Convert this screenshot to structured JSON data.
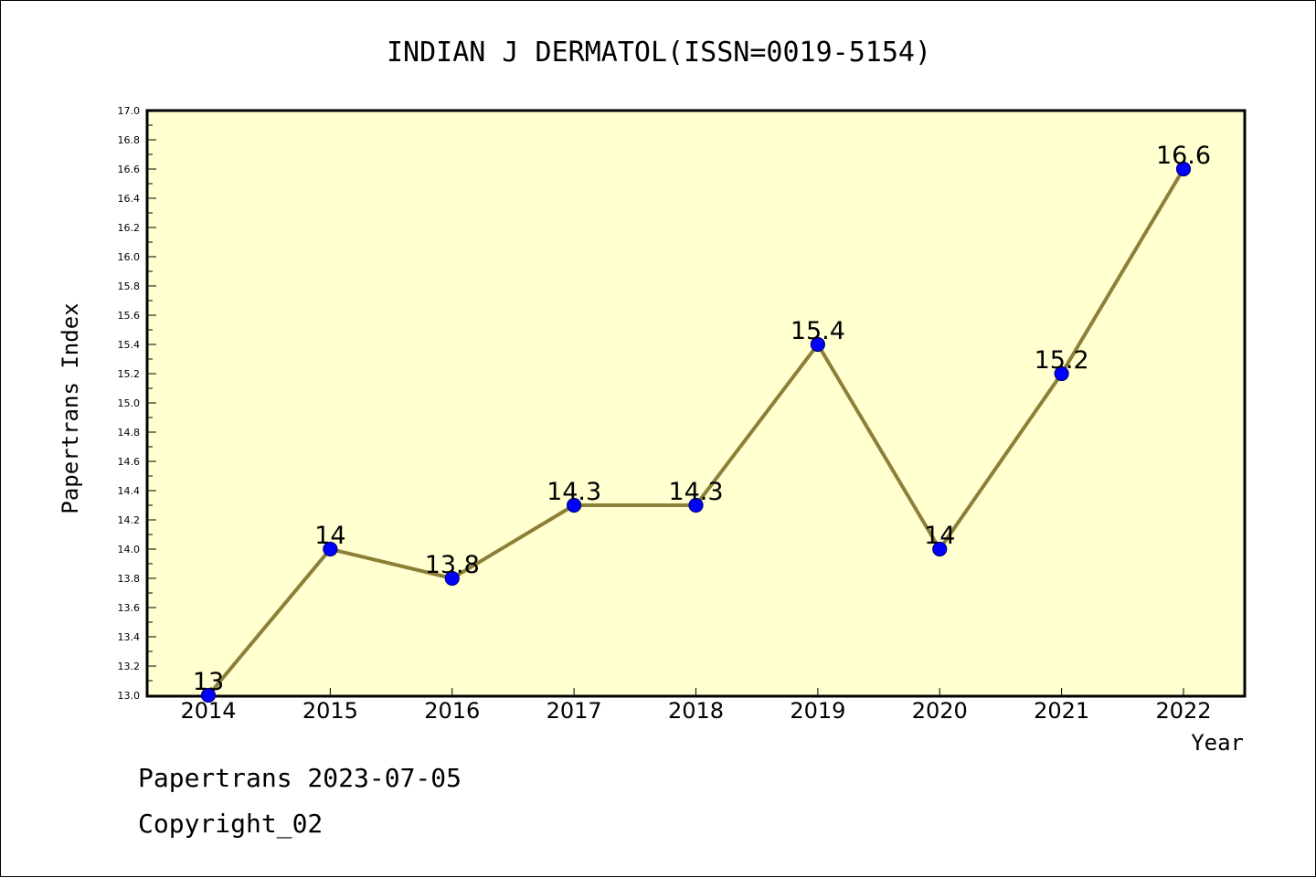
{
  "chart_data": {
    "type": "line",
    "title": "INDIAN J DERMATOL(ISSN=0019-5154)",
    "xlabel": "Year",
    "ylabel": "Papertrans Index",
    "categories": [
      "2014",
      "2015",
      "2016",
      "2017",
      "2018",
      "2019",
      "2020",
      "2021",
      "2022"
    ],
    "values": [
      13,
      14,
      13.8,
      14.3,
      14.3,
      15.4,
      14,
      15.2,
      16.6
    ],
    "data_labels": [
      "13",
      "14",
      "13.8",
      "14.3",
      "14.3",
      "15.4",
      "14",
      "15.2",
      "16.6"
    ],
    "ylim": [
      13.0,
      17.0
    ],
    "yticks": [
      "13.0",
      "13.2",
      "13.4",
      "13.6",
      "13.8",
      "14.0",
      "14.2",
      "14.4",
      "14.6",
      "14.8",
      "15.0",
      "15.2",
      "15.4",
      "15.6",
      "15.8",
      "16.0",
      "16.2",
      "16.4",
      "16.6",
      "16.8",
      "17.0"
    ],
    "grid": false,
    "colors": {
      "plot_background": "#ffffd0",
      "line": "#8c8038",
      "marker_fill": "#0000ff",
      "marker_edge": "#000080"
    }
  },
  "footer": {
    "line1": "Papertrans 2023-07-05",
    "line2": "Copyright_02"
  }
}
